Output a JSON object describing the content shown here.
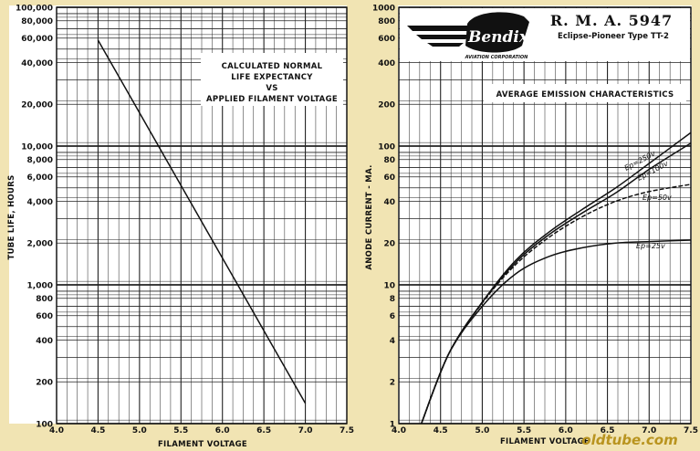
{
  "watermark": "oldtube.com",
  "brand": {
    "logo_text": "Bendix",
    "corp_text": "AVIATION CORPORATION",
    "title": "R. M. A.   5947",
    "subtitle": "Eclipse-Pioneer Type TT-2"
  },
  "chart_data": [
    {
      "type": "line",
      "title": "CALCULATED NORMAL LIFE EXPECTANCY VS APPLIED FILAMENT VOLTAGE",
      "title_lines": [
        "CALCULATED NORMAL",
        "LIFE EXPECTANCY",
        "VS",
        "APPLIED FILAMENT VOLTAGE"
      ],
      "xlabel": "FILAMENT VOLTAGE",
      "ylabel": "TUBE LIFE, HOURS",
      "xlim": [
        4.0,
        7.5
      ],
      "ylim": [
        100,
        100000
      ],
      "yscale": "log",
      "grid": true,
      "x_ticks": [
        "4.0",
        "4.5",
        "5.0",
        "5.5",
        "6.0",
        "6.5",
        "7.0",
        "7.5"
      ],
      "y_ticks": [
        "100",
        "200",
        "400",
        "600",
        "800",
        "1,000",
        "2,000",
        "4,000",
        "6,000",
        "8,000",
        "10,000",
        "20,000",
        "40,000",
        "60,000",
        "80,000",
        "100,000"
      ],
      "series": [
        {
          "x": [
            4.5,
            7.0
          ],
          "y": [
            58000,
            140
          ]
        }
      ]
    },
    {
      "type": "line",
      "title": "AVERAGE EMISSION CHARACTERISTICS",
      "xlabel": "FILAMENT VOLTAGE",
      "ylabel": "ANODE CURRENT - MA.",
      "xlim": [
        4.0,
        7.5
      ],
      "ylim": [
        1,
        1000
      ],
      "yscale": "log",
      "grid": true,
      "x_ticks": [
        "4.0",
        "4.5",
        "5.0",
        "5.5",
        "6.0",
        "6.5",
        "7.0",
        "7.5"
      ],
      "y_ticks": [
        "1",
        "2",
        "4",
        "6",
        "8",
        "10",
        "20",
        "40",
        "60",
        "80",
        "100",
        "200",
        "400",
        "600",
        "800",
        "1000"
      ],
      "series": [
        {
          "name": "Ep=250v",
          "x": [
            4.27,
            4.6,
            5.0,
            5.4,
            5.8,
            6.2,
            6.6,
            7.0,
            7.5
          ],
          "y": [
            1,
            3.2,
            7.5,
            15,
            24,
            35,
            50,
            75,
            125
          ]
        },
        {
          "name": "Ep=100v",
          "x": [
            4.27,
            4.6,
            5.0,
            5.4,
            5.8,
            6.2,
            6.6,
            7.0,
            7.5
          ],
          "y": [
            1,
            3.2,
            7.5,
            14.5,
            23,
            33,
            46,
            68,
            105
          ]
        },
        {
          "name": "Ep=50v",
          "x": [
            4.27,
            4.6,
            5.0,
            5.4,
            5.8,
            6.2,
            6.6,
            7.0,
            7.5
          ],
          "y": [
            1,
            3.2,
            7.4,
            14,
            22,
            31,
            40,
            47,
            53
          ]
        },
        {
          "name": "Ep=25v",
          "x": [
            4.27,
            4.6,
            5.0,
            5.4,
            5.8,
            6.2,
            6.6,
            7.0,
            7.5
          ],
          "y": [
            1,
            3.2,
            7,
            12,
            16,
            18.5,
            20,
            20.5,
            21
          ]
        }
      ]
    }
  ]
}
